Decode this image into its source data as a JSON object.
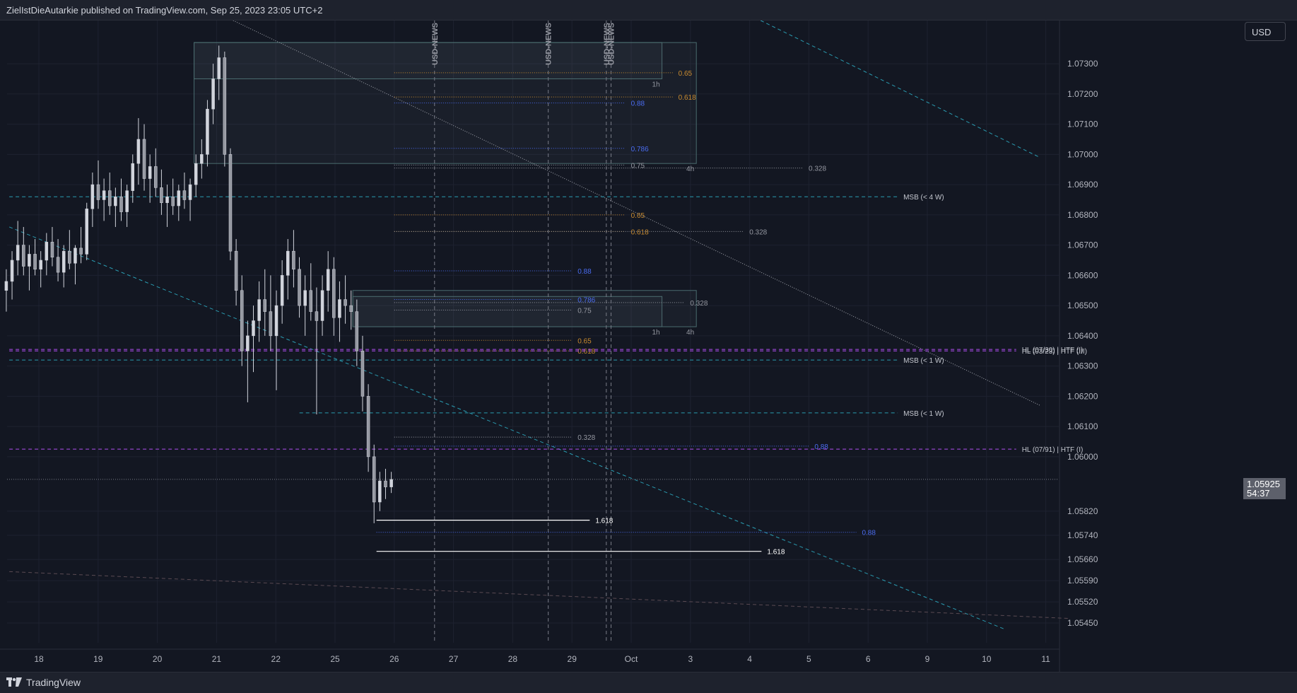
{
  "header": {
    "publisher_text": "ZielIstDieAutarkie published on TradingView.com, Sep 25, 2023 23:05 UTC+2"
  },
  "currency_button": {
    "label": "USD"
  },
  "last_price": {
    "value": "1.05925",
    "countdown": "54:37"
  },
  "footer": {
    "brand": "TradingView"
  },
  "colors": {
    "background": "#131722",
    "grid": "#1e2230",
    "candle": "#d1d4dc",
    "teal": "#2a9bb0",
    "purple": "#b04ff0",
    "orange": "#c98b2f",
    "blue": "#4a6cf0",
    "white": "#ffffff",
    "gray": "#9598a1"
  },
  "chart_data": {
    "type": "candlestick",
    "symbol_currency": "USD",
    "x_tick_labels": [
      "18",
      "19",
      "20",
      "21",
      "22",
      "25",
      "26",
      "27",
      "28",
      "29",
      "Oct",
      "3",
      "4",
      "5",
      "6",
      "9",
      "10",
      "11"
    ],
    "y_tick_labels": [
      "1.07300",
      "1.07200",
      "1.07100",
      "1.07000",
      "1.06900",
      "1.06800",
      "1.06700",
      "1.06600",
      "1.06500",
      "1.06400",
      "1.06300",
      "1.06200",
      "1.06100",
      "1.06000",
      "1.05820",
      "1.05740",
      "1.05660",
      "1.05590",
      "1.05520",
      "1.05450"
    ],
    "y_tick_values": [
      1.073,
      1.072,
      1.071,
      1.07,
      1.069,
      1.068,
      1.067,
      1.066,
      1.065,
      1.064,
      1.063,
      1.062,
      1.061,
      1.06,
      1.0582,
      1.0574,
      1.0566,
      1.0559,
      1.0552,
      1.0545
    ],
    "last_price": 1.05925,
    "vertical_events": [
      {
        "label": "USD-NEWS",
        "day_index": 6.68
      },
      {
        "label": "USD-NEWS",
        "day_index": 8.6
      },
      {
        "label": "USD-NEWS",
        "day_index": 9.58
      },
      {
        "label": "USD-NEWS",
        "day_index": 9.66
      }
    ],
    "zones": [
      {
        "label": "1h",
        "x0": 2.62,
        "x1": 10.52,
        "y0": 1.0737,
        "y1": 1.0725
      },
      {
        "label": "4h",
        "x0": 2.62,
        "x1": 11.1,
        "y0": 1.0737,
        "y1": 1.0697
      },
      {
        "label": "1h",
        "x0": 5.3,
        "x1": 10.52,
        "y0": 1.0653,
        "y1": 1.0643
      },
      {
        "label": "4h",
        "x0": 5.3,
        "x1": 11.1,
        "y0": 1.0655,
        "y1": 1.0643
      }
    ],
    "levels": [
      {
        "label": "0.65",
        "color": "orange",
        "x0": 6.0,
        "x1": 10.7,
        "y": 1.0727
      },
      {
        "label": "0.618",
        "color": "orange",
        "x0": 6.0,
        "x1": 10.7,
        "y": 1.0719
      },
      {
        "label": "0.88",
        "color": "blue",
        "x0": 6.0,
        "x1": 9.9,
        "y": 1.0717
      },
      {
        "label": "0.786",
        "color": "blue",
        "x0": 6.0,
        "x1": 9.9,
        "y": 1.0702
      },
      {
        "label": "0.75",
        "color": "gray",
        "x0": 6.0,
        "x1": 9.9,
        "y": 1.06965
      },
      {
        "label": "0.328",
        "color": "gray",
        "x0": 6.0,
        "x1": 12.9,
        "y": 1.06955
      },
      {
        "label": "MSB (< 4 W)",
        "color": "teal",
        "x0": -0.5,
        "x1": 14.5,
        "y": 1.0686
      },
      {
        "label": "0.65",
        "color": "orange",
        "x0": 6.0,
        "x1": 9.9,
        "y": 1.068
      },
      {
        "label": "0.618",
        "color": "orange",
        "x0": 6.0,
        "x1": 9.9,
        "y": 1.06745
      },
      {
        "label": "0.328",
        "color": "gray",
        "x0": 6.0,
        "x1": 11.9,
        "y": 1.06745
      },
      {
        "label": "0.88",
        "color": "blue",
        "x0": 6.0,
        "x1": 9.0,
        "y": 1.06615
      },
      {
        "label": "0.786",
        "color": "blue",
        "x0": 6.0,
        "x1": 9.0,
        "y": 1.0652
      },
      {
        "label": "0.75",
        "color": "gray",
        "x0": 6.0,
        "x1": 9.0,
        "y": 1.06485
      },
      {
        "label": "0.328",
        "color": "gray",
        "x0": 6.0,
        "x1": 10.9,
        "y": 1.0651
      },
      {
        "label": "0.65",
        "color": "orange",
        "x0": 6.0,
        "x1": 9.0,
        "y": 1.06385
      },
      {
        "label": "0.618",
        "color": "orange",
        "x0": 6.0,
        "x1": 9.0,
        "y": 1.0635
      },
      {
        "label": "HL (07/30) | HTF (I)",
        "color": "purple",
        "x0": -0.5,
        "x1": 16.5,
        "y": 1.06355
      },
      {
        "label": "HL (03/23) | HTF (III)",
        "color": "purple",
        "x0": -0.5,
        "x1": 16.5,
        "y": 1.0635
      },
      {
        "label": "MSB (< 1 W)",
        "color": "teal",
        "x0": -0.5,
        "x1": 14.5,
        "y": 1.0632
      },
      {
        "label": "MSB (< 1 W)",
        "color": "teal",
        "x0": 4.4,
        "x1": 14.5,
        "y": 1.06145
      },
      {
        "label": "0.328",
        "color": "gray",
        "x0": 6.0,
        "x1": 9.0,
        "y": 1.06065
      },
      {
        "label": "0.88",
        "color": "blue",
        "x0": 6.0,
        "x1": 13.0,
        "y": 1.06035
      },
      {
        "label": "HL (07/91) | HTF (I)",
        "color": "purple",
        "x0": -0.5,
        "x1": 16.5,
        "y": 1.06025
      },
      {
        "label": "1.618",
        "color": "white",
        "x0": 5.7,
        "x1": 9.3,
        "y": 1.0579
      },
      {
        "label": "0.88",
        "color": "blue",
        "x0": 5.7,
        "x1": 13.8,
        "y": 1.0575
      },
      {
        "label": "1.618",
        "color": "white",
        "x0": 5.7,
        "x1": 12.2,
        "y": 1.05687
      }
    ],
    "trendlines": [
      {
        "style": "dotted-gray",
        "x0": 1.6,
        "y0": 1.076,
        "x1": 16.9,
        "y1": 1.0617
      },
      {
        "style": "dashed-teal",
        "x0": 11.8,
        "y0": 1.0748,
        "x1": 16.9,
        "y1": 1.0699
      },
      {
        "style": "dashed-teal",
        "x0": -0.5,
        "y0": 1.0676,
        "x1": 16.3,
        "y1": 1.0543
      },
      {
        "style": "dashed-gray",
        "x0": -0.5,
        "y0": 1.0562,
        "x1": 17.4,
        "y1": 1.05465
      }
    ],
    "candles_ohlc": [
      [
        1.0655,
        1.0662,
        1.0648,
        1.0658
      ],
      [
        1.0658,
        1.0668,
        1.0652,
        1.0665
      ],
      [
        1.0665,
        1.0678,
        1.066,
        1.067
      ],
      [
        1.067,
        1.0676,
        1.066,
        1.0663
      ],
      [
        1.0663,
        1.067,
        1.0655,
        1.0667
      ],
      [
        1.0667,
        1.0672,
        1.066,
        1.0662
      ],
      [
        1.0662,
        1.0668,
        1.0656,
        1.0665
      ],
      [
        1.0665,
        1.0674,
        1.066,
        1.0671
      ],
      [
        1.0671,
        1.0676,
        1.0663,
        1.0666
      ],
      [
        1.0666,
        1.0672,
        1.0658,
        1.0661
      ],
      [
        1.0661,
        1.067,
        1.0656,
        1.0668
      ],
      [
        1.0668,
        1.0675,
        1.0662,
        1.0664
      ],
      [
        1.0664,
        1.067,
        1.0657,
        1.0669
      ],
      [
        1.0669,
        1.0676,
        1.0664,
        1.0667
      ],
      [
        1.0667,
        1.0684,
        1.0665,
        1.0682
      ],
      [
        1.0682,
        1.0694,
        1.0676,
        1.069
      ],
      [
        1.069,
        1.0698,
        1.0682,
        1.0685
      ],
      [
        1.0685,
        1.0692,
        1.0678,
        1.0688
      ],
      [
        1.0688,
        1.0694,
        1.068,
        1.0683
      ],
      [
        1.0683,
        1.0689,
        1.0676,
        1.0686
      ],
      [
        1.0686,
        1.0692,
        1.0678,
        1.0681
      ],
      [
        1.0681,
        1.069,
        1.0676,
        1.0688
      ],
      [
        1.0688,
        1.07,
        1.0684,
        1.0697
      ],
      [
        1.0697,
        1.0712,
        1.069,
        1.0705
      ],
      [
        1.0705,
        1.071,
        1.0688,
        1.0692
      ],
      [
        1.0692,
        1.07,
        1.0684,
        1.0696
      ],
      [
        1.0696,
        1.0702,
        1.0686,
        1.0689
      ],
      [
        1.0689,
        1.0695,
        1.068,
        1.0684
      ],
      [
        1.0684,
        1.069,
        1.0676,
        1.0686
      ],
      [
        1.0686,
        1.0692,
        1.068,
        1.0683
      ],
      [
        1.0683,
        1.069,
        1.0678,
        1.0688
      ],
      [
        1.0688,
        1.0694,
        1.0682,
        1.0685
      ],
      [
        1.0685,
        1.0692,
        1.0678,
        1.069
      ],
      [
        1.069,
        1.07,
        1.0686,
        1.0697
      ],
      [
        1.0697,
        1.0705,
        1.0692,
        1.07
      ],
      [
        1.07,
        1.0718,
        1.0696,
        1.0715
      ],
      [
        1.0715,
        1.073,
        1.071,
        1.0725
      ],
      [
        1.0725,
        1.0736,
        1.0718,
        1.0732
      ],
      [
        1.0732,
        1.0734,
        1.0696,
        1.07
      ],
      [
        1.07,
        1.0702,
        1.0665,
        1.0668
      ],
      [
        1.0668,
        1.0672,
        1.065,
        1.0655
      ],
      [
        1.0655,
        1.066,
        1.063,
        1.0635
      ],
      [
        1.0635,
        1.0645,
        1.0618,
        1.064
      ],
      [
        1.064,
        1.065,
        1.0628,
        1.0645
      ],
      [
        1.0645,
        1.0658,
        1.0638,
        1.0652
      ],
      [
        1.0652,
        1.0662,
        1.064,
        1.0648
      ],
      [
        1.0648,
        1.066,
        1.0635,
        1.064
      ],
      [
        1.064,
        1.0655,
        1.0622,
        1.065
      ],
      [
        1.065,
        1.0665,
        1.0644,
        1.066
      ],
      [
        1.066,
        1.0672,
        1.0652,
        1.0668
      ],
      [
        1.0668,
        1.0675,
        1.0656,
        1.0662
      ],
      [
        1.0662,
        1.0666,
        1.0646,
        1.065
      ],
      [
        1.065,
        1.066,
        1.064,
        1.0655
      ],
      [
        1.0655,
        1.0664,
        1.0645,
        1.0648
      ],
      [
        1.0648,
        1.0656,
        1.0614,
        1.0645
      ],
      [
        1.0645,
        1.066,
        1.064,
        1.0655
      ],
      [
        1.0655,
        1.0668,
        1.0648,
        1.0662
      ],
      [
        1.0662,
        1.0666,
        1.064,
        1.0646
      ],
      [
        1.0646,
        1.0658,
        1.0638,
        1.0652
      ],
      [
        1.0652,
        1.066,
        1.0644,
        1.065
      ],
      [
        1.065,
        1.0655,
        1.0642,
        1.0648
      ],
      [
        1.0648,
        1.0652,
        1.063,
        1.0635
      ],
      [
        1.0635,
        1.064,
        1.0615,
        1.062
      ],
      [
        1.062,
        1.0624,
        1.0595,
        1.06
      ],
      [
        1.06,
        1.0604,
        1.0578,
        1.0585
      ],
      [
        1.0585,
        1.0595,
        1.0582,
        1.0592
      ],
      [
        1.0592,
        1.0596,
        1.0586,
        1.059
      ],
      [
        1.059,
        1.0595,
        1.0588,
        1.05925
      ]
    ]
  }
}
